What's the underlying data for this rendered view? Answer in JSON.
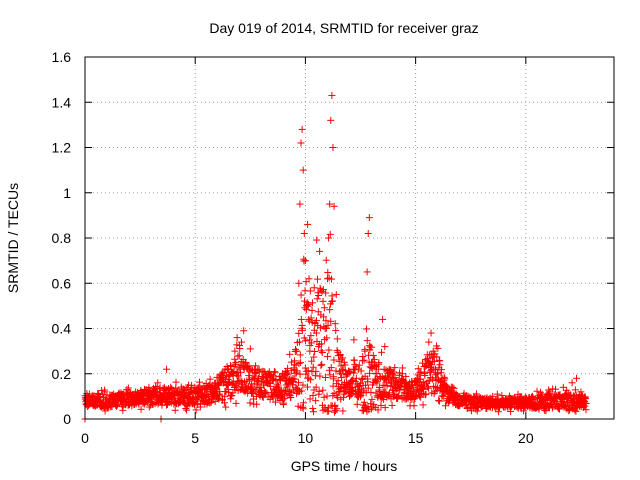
{
  "chart_data": {
    "type": "scatter",
    "title": "Day 019 of 2014, SRMTID for receiver graz",
    "xlabel": "GPS time / hours",
    "ylabel": "SRMTID / TECUs",
    "xlim": [
      0,
      24
    ],
    "ylim": [
      0,
      1.6
    ],
    "x_ticks": [
      0,
      5,
      10,
      15,
      20
    ],
    "y_ticks": [
      0,
      0.2,
      0.4,
      0.6,
      0.8,
      1,
      1.2,
      1.4,
      1.6
    ],
    "x_tick_labels": [
      "0",
      "5",
      "10",
      "15",
      "20"
    ],
    "y_tick_labels": [
      "0",
      "0.2",
      "0.4",
      "0.6",
      "0.8",
      "1",
      "1.2",
      "1.4",
      "1.6"
    ],
    "grid": true,
    "marker": "+",
    "color": "#ff0000",
    "envelope": {
      "description_hours": [
        0,
        1,
        2,
        3,
        4,
        5,
        6,
        6.5,
        7,
        7.5,
        8,
        9,
        9.5,
        9.8,
        10,
        10.3,
        10.6,
        11,
        11.2,
        11.5,
        12,
        12.5,
        12.8,
        13.2,
        14,
        15,
        15.5,
        16,
        16.5,
        17,
        18,
        19,
        20,
        21,
        22,
        22.7
      ],
      "base": [
        0.08,
        0.08,
        0.09,
        0.1,
        0.1,
        0.1,
        0.12,
        0.18,
        0.2,
        0.17,
        0.15,
        0.15,
        0.18,
        0.3,
        0.4,
        0.3,
        0.35,
        0.3,
        0.3,
        0.2,
        0.15,
        0.18,
        0.2,
        0.17,
        0.15,
        0.13,
        0.2,
        0.2,
        0.1,
        0.08,
        0.07,
        0.07,
        0.07,
        0.08,
        0.08,
        0.08
      ],
      "spread": [
        0.04,
        0.05,
        0.05,
        0.06,
        0.07,
        0.07,
        0.08,
        0.14,
        0.14,
        0.1,
        0.1,
        0.1,
        0.15,
        0.55,
        0.6,
        0.45,
        0.5,
        0.55,
        0.55,
        0.2,
        0.1,
        0.15,
        0.4,
        0.15,
        0.1,
        0.08,
        0.15,
        0.15,
        0.05,
        0.05,
        0.04,
        0.04,
        0.04,
        0.06,
        0.06,
        0.04
      ]
    },
    "x": [
      0.0,
      0.1,
      0.2,
      0.35,
      0.5,
      0.7,
      0.9,
      1.1,
      1.3,
      1.5,
      1.7,
      1.9,
      2.1,
      2.3,
      2.5,
      2.7,
      2.9,
      3.1,
      3.3,
      3.5,
      3.7,
      3.9,
      4.1,
      4.3,
      4.5,
      4.7,
      4.9,
      5.1,
      5.3,
      5.5,
      5.7,
      5.9,
      6.1,
      6.3,
      6.5,
      6.7,
      6.8,
      6.9,
      7.0,
      7.1,
      7.2,
      7.3,
      7.5,
      7.7,
      7.9,
      8.1,
      8.3,
      8.5,
      8.7,
      8.9,
      9.1,
      9.3,
      9.5,
      9.6,
      9.7,
      9.75,
      9.8,
      9.85,
      9.9,
      9.95,
      10.0,
      10.05,
      10.1,
      10.15,
      10.2,
      10.3,
      10.4,
      10.5,
      10.6,
      10.7,
      10.8,
      10.9,
      11.0,
      11.05,
      11.1,
      11.15,
      11.2,
      11.25,
      11.3,
      11.4,
      11.5,
      11.6,
      11.8,
      12.0,
      12.2,
      12.4,
      12.6,
      12.7,
      12.8,
      12.85,
      12.9,
      13.0,
      13.2,
      13.4,
      13.5,
      13.6,
      13.8,
      14.0,
      14.2,
      14.4,
      14.6,
      14.8,
      15.0,
      15.2,
      15.4,
      15.6,
      15.7,
      15.8,
      15.9,
      16.0,
      16.1,
      16.2,
      16.3,
      16.4,
      16.5,
      16.7,
      16.9,
      17.1,
      17.3,
      17.5,
      17.7,
      17.9,
      18.1,
      18.3,
      18.5,
      18.7,
      18.9,
      19.1,
      19.3,
      19.5,
      19.7,
      19.9,
      20.1,
      20.3,
      20.5,
      20.7,
      20.9,
      21.1,
      21.3,
      21.5,
      21.7,
      21.9,
      22.1,
      22.3,
      22.5,
      22.7,
      3.45
    ],
    "y": [
      0.0,
      0.09,
      0.11,
      0.07,
      0.1,
      0.08,
      0.12,
      0.09,
      0.11,
      0.1,
      0.08,
      0.13,
      0.1,
      0.12,
      0.09,
      0.11,
      0.14,
      0.1,
      0.16,
      0.08,
      0.22,
      0.1,
      0.07,
      0.12,
      0.1,
      0.15,
      0.09,
      0.11,
      0.13,
      0.1,
      0.12,
      0.14,
      0.11,
      0.16,
      0.13,
      0.2,
      0.3,
      0.36,
      0.28,
      0.34,
      0.39,
      0.25,
      0.31,
      0.18,
      0.22,
      0.15,
      0.2,
      0.17,
      0.12,
      0.19,
      0.21,
      0.16,
      0.24,
      0.3,
      0.6,
      0.95,
      1.22,
      1.28,
      1.1,
      0.82,
      0.7,
      0.5,
      0.86,
      0.44,
      0.3,
      0.48,
      0.58,
      0.38,
      0.32,
      0.46,
      0.52,
      0.4,
      0.62,
      0.8,
      0.95,
      1.32,
      1.43,
      1.2,
      0.94,
      0.55,
      0.28,
      0.2,
      0.12,
      0.1,
      0.35,
      0.22,
      0.18,
      0.3,
      0.65,
      0.82,
      0.89,
      0.25,
      0.2,
      0.18,
      0.44,
      0.32,
      0.22,
      0.18,
      0.16,
      0.2,
      0.14,
      0.12,
      0.1,
      0.13,
      0.15,
      0.34,
      0.38,
      0.3,
      0.22,
      0.2,
      0.24,
      0.18,
      0.12,
      0.08,
      0.1,
      0.07,
      0.06,
      0.09,
      0.08,
      0.05,
      0.07,
      0.09,
      0.06,
      0.08,
      0.1,
      0.06,
      0.07,
      0.08,
      0.05,
      0.09,
      0.07,
      0.06,
      0.08,
      0.1,
      0.07,
      0.09,
      0.06,
      0.12,
      0.08,
      0.1,
      0.14,
      0.09,
      0.16,
      0.18,
      0.12,
      0.09,
      0.0
    ]
  }
}
